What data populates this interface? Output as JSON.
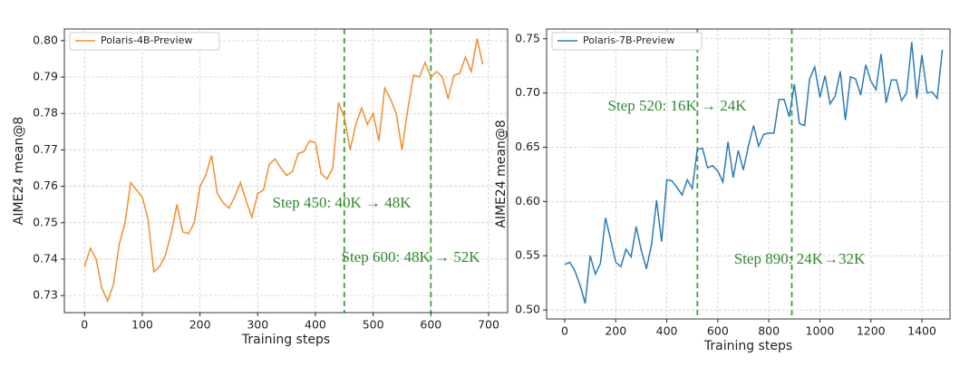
{
  "chart_data": [
    {
      "type": "line",
      "x_label": "Training steps",
      "y_label": "AIME24 mean@8",
      "xlim": [
        -35,
        733
      ],
      "ylim": [
        0.7253,
        0.8032
      ],
      "xticks": [
        0,
        100,
        200,
        300,
        400,
        500,
        600,
        700
      ],
      "yticks": [
        {
          "value": 0.73,
          "label": "0.73"
        },
        {
          "value": 0.74,
          "label": "0.74"
        },
        {
          "value": 0.75,
          "label": "0.75"
        },
        {
          "value": 0.76,
          "label": "0.76"
        },
        {
          "value": 0.77,
          "label": "0.77"
        },
        {
          "value": 0.78,
          "label": "0.78"
        },
        {
          "value": 0.79,
          "label": "0.79"
        },
        {
          "value": 0.8,
          "label": "0.80"
        }
      ],
      "grid": true,
      "legend": "upper left",
      "vlines": [
        450,
        600
      ],
      "vline_color": "#3aa33a",
      "annotations": [
        "Step 450: 40K → 48K",
        "Step 600: 48K → 52K"
      ],
      "x": [
        0,
        10,
        20,
        30,
        40,
        50,
        60,
        70,
        80,
        90,
        100,
        110,
        120,
        130,
        140,
        150,
        160,
        170,
        180,
        190,
        200,
        210,
        220,
        230,
        240,
        250,
        260,
        270,
        280,
        290,
        300,
        310,
        320,
        330,
        340,
        350,
        360,
        370,
        380,
        390,
        400,
        410,
        420,
        430,
        440,
        450,
        460,
        470,
        480,
        490,
        500,
        510,
        520,
        530,
        540,
        550,
        560,
        570,
        580,
        590,
        600,
        610,
        620,
        630,
        640,
        650,
        660,
        670,
        680,
        690
      ],
      "series": [
        {
          "name": "Polaris-4B-Preview",
          "color": "#f28e2b",
          "values": [
            0.738,
            0.743,
            0.74,
            0.732,
            0.7285,
            0.733,
            0.744,
            0.75,
            0.761,
            0.759,
            0.757,
            0.751,
            0.7365,
            0.738,
            0.741,
            0.747,
            0.755,
            0.7475,
            0.747,
            0.75,
            0.76,
            0.763,
            0.7685,
            0.758,
            0.7555,
            0.754,
            0.757,
            0.761,
            0.756,
            0.7515,
            0.758,
            0.759,
            0.766,
            0.7675,
            0.765,
            0.763,
            0.764,
            0.769,
            0.7695,
            0.7725,
            0.772,
            0.7635,
            0.762,
            0.765,
            0.783,
            0.779,
            0.77,
            0.777,
            0.7815,
            0.777,
            0.78,
            0.7725,
            0.787,
            0.784,
            0.78,
            0.77,
            0.781,
            0.7905,
            0.79,
            0.794,
            0.79,
            0.7915,
            0.79,
            0.784,
            0.7905,
            0.791,
            0.7955,
            0.7915,
            0.8005,
            0.7935
          ]
        }
      ]
    },
    {
      "type": "line",
      "x_label": "Training steps",
      "y_label": "AIME24 mean@8",
      "xlim": [
        -71,
        1510
      ],
      "ylim": [
        0.4917,
        0.759
      ],
      "xticks": [
        0,
        200,
        400,
        600,
        800,
        1000,
        1200,
        1400
      ],
      "yticks": [
        {
          "value": 0.5,
          "label": "0.50"
        },
        {
          "value": 0.55,
          "label": "0.55"
        },
        {
          "value": 0.6,
          "label": "0.60"
        },
        {
          "value": 0.65,
          "label": "0.65"
        },
        {
          "value": 0.7,
          "label": "0.70"
        },
        {
          "value": 0.75,
          "label": "0.75"
        }
      ],
      "grid": true,
      "legend": "upper left",
      "vlines": [
        520,
        890
      ],
      "vline_color": "#3aa33a",
      "annotations": [
        "Step 520: 16K → 24K",
        "Step 890: 24K→32K"
      ],
      "x": [
        0,
        20,
        40,
        60,
        80,
        100,
        120,
        140,
        160,
        180,
        200,
        220,
        240,
        260,
        280,
        300,
        320,
        340,
        360,
        380,
        400,
        420,
        440,
        460,
        480,
        500,
        520,
        540,
        560,
        580,
        600,
        620,
        640,
        660,
        680,
        700,
        720,
        740,
        760,
        780,
        800,
        820,
        840,
        860,
        880,
        900,
        920,
        940,
        960,
        980,
        1000,
        1020,
        1040,
        1060,
        1080,
        1100,
        1120,
        1140,
        1160,
        1180,
        1200,
        1220,
        1240,
        1260,
        1280,
        1300,
        1320,
        1340,
        1360,
        1380,
        1400,
        1420,
        1440,
        1460,
        1480
      ],
      "series": [
        {
          "name": "Polaris-7B-Preview",
          "color": "#2c7bb6",
          "values": [
            0.542,
            0.544,
            0.536,
            0.523,
            0.506,
            0.55,
            0.533,
            0.543,
            0.585,
            0.565,
            0.544,
            0.54,
            0.556,
            0.549,
            0.577,
            0.555,
            0.538,
            0.56,
            0.601,
            0.563,
            0.62,
            0.619,
            0.613,
            0.606,
            0.62,
            0.612,
            0.648,
            0.649,
            0.631,
            0.633,
            0.628,
            0.618,
            0.655,
            0.622,
            0.647,
            0.629,
            0.651,
            0.67,
            0.651,
            0.662,
            0.663,
            0.663,
            0.694,
            0.694,
            0.678,
            0.708,
            0.672,
            0.67,
            0.713,
            0.724,
            0.696,
            0.716,
            0.69,
            0.697,
            0.72,
            0.675,
            0.715,
            0.713,
            0.698,
            0.726,
            0.711,
            0.703,
            0.736,
            0.691,
            0.712,
            0.712,
            0.693,
            0.7,
            0.747,
            0.695,
            0.735,
            0.7,
            0.701,
            0.695,
            0.74
          ]
        }
      ]
    }
  ]
}
